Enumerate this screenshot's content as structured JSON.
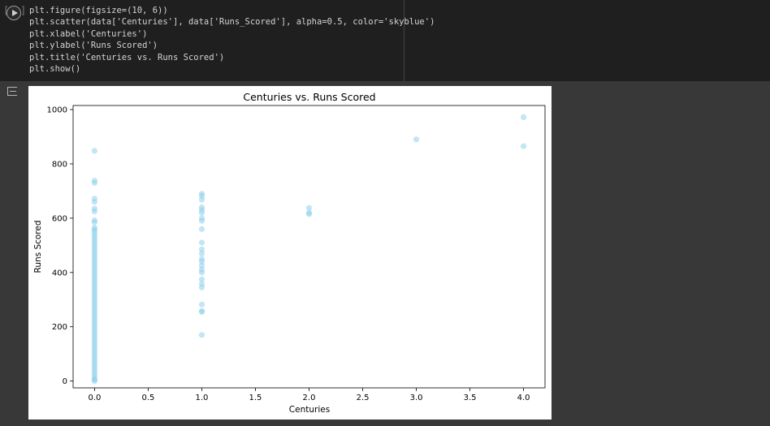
{
  "code_cell": {
    "run_button": "run-cell",
    "lines": [
      "plt.figure(figsize=(10, 6))",
      "plt.scatter(data['Centuries'], data['Runs_Scored'], alpha=0.5, color='skyblue')",
      "plt.xlabel('Centuries')",
      "plt.ylabel('Runs Scored')",
      "plt.title('Centuries vs. Runs Scored')",
      "plt.show()"
    ]
  },
  "output": {
    "icon": "output-icon"
  },
  "chart_data": {
    "type": "scatter",
    "title": "Centuries vs. Runs Scored",
    "xlabel": "Centuries",
    "ylabel": "Runs Scored",
    "xlim": [
      -0.2,
      4.2
    ],
    "ylim": [
      -25,
      1015
    ],
    "xticks": [
      0.0,
      0.5,
      1.0,
      1.5,
      2.0,
      2.5,
      3.0,
      3.5,
      4.0
    ],
    "xtick_labels": [
      "0.0",
      "0.5",
      "1.0",
      "1.5",
      "2.0",
      "2.5",
      "3.0",
      "3.5",
      "4.0"
    ],
    "yticks": [
      0,
      200,
      400,
      600,
      800,
      1000
    ],
    "ytick_labels": [
      "0",
      "200",
      "400",
      "600",
      "800",
      "1000"
    ],
    "grid": false,
    "color": "#87ceeb",
    "alpha": 0.5,
    "points": [
      [
        0,
        848
      ],
      [
        0,
        738
      ],
      [
        0,
        730
      ],
      [
        0,
        672
      ],
      [
        0,
        660
      ],
      [
        0,
        635
      ],
      [
        0,
        625
      ],
      [
        0,
        592
      ],
      [
        0,
        585
      ],
      [
        0,
        565
      ],
      [
        0,
        558
      ],
      [
        0,
        550
      ],
      [
        0,
        540
      ],
      [
        0,
        530
      ],
      [
        0,
        520
      ],
      [
        0,
        510
      ],
      [
        0,
        500
      ],
      [
        0,
        490
      ],
      [
        0,
        480
      ],
      [
        0,
        470
      ],
      [
        0,
        460
      ],
      [
        0,
        450
      ],
      [
        0,
        440
      ],
      [
        0,
        430
      ],
      [
        0,
        420
      ],
      [
        0,
        410
      ],
      [
        0,
        400
      ],
      [
        0,
        390
      ],
      [
        0,
        380
      ],
      [
        0,
        370
      ],
      [
        0,
        360
      ],
      [
        0,
        350
      ],
      [
        0,
        340
      ],
      [
        0,
        330
      ],
      [
        0,
        320
      ],
      [
        0,
        310
      ],
      [
        0,
        300
      ],
      [
        0,
        290
      ],
      [
        0,
        280
      ],
      [
        0,
        270
      ],
      [
        0,
        260
      ],
      [
        0,
        250
      ],
      [
        0,
        240
      ],
      [
        0,
        230
      ],
      [
        0,
        220
      ],
      [
        0,
        210
      ],
      [
        0,
        200
      ],
      [
        0,
        190
      ],
      [
        0,
        180
      ],
      [
        0,
        170
      ],
      [
        0,
        160
      ],
      [
        0,
        150
      ],
      [
        0,
        140
      ],
      [
        0,
        130
      ],
      [
        0,
        120
      ],
      [
        0,
        110
      ],
      [
        0,
        100
      ],
      [
        0,
        90
      ],
      [
        0,
        80
      ],
      [
        0,
        70
      ],
      [
        0,
        60
      ],
      [
        0,
        50
      ],
      [
        0,
        40
      ],
      [
        0,
        30
      ],
      [
        0,
        20
      ],
      [
        0,
        10
      ],
      [
        0,
        5
      ],
      [
        0,
        0
      ],
      [
        1,
        690
      ],
      [
        1,
        682
      ],
      [
        1,
        668
      ],
      [
        1,
        640
      ],
      [
        1,
        630
      ],
      [
        1,
        620
      ],
      [
        1,
        600
      ],
      [
        1,
        590
      ],
      [
        1,
        560
      ],
      [
        1,
        510
      ],
      [
        1,
        485
      ],
      [
        1,
        470
      ],
      [
        1,
        450
      ],
      [
        1,
        440
      ],
      [
        1,
        425
      ],
      [
        1,
        410
      ],
      [
        1,
        400
      ],
      [
        1,
        375
      ],
      [
        1,
        358
      ],
      [
        1,
        345
      ],
      [
        1,
        282
      ],
      [
        1,
        258
      ],
      [
        1,
        255
      ],
      [
        1,
        170
      ],
      [
        2,
        638
      ],
      [
        2,
        620
      ],
      [
        2,
        615
      ],
      [
        3,
        890
      ],
      [
        4,
        972
      ],
      [
        4,
        865
      ]
    ]
  }
}
